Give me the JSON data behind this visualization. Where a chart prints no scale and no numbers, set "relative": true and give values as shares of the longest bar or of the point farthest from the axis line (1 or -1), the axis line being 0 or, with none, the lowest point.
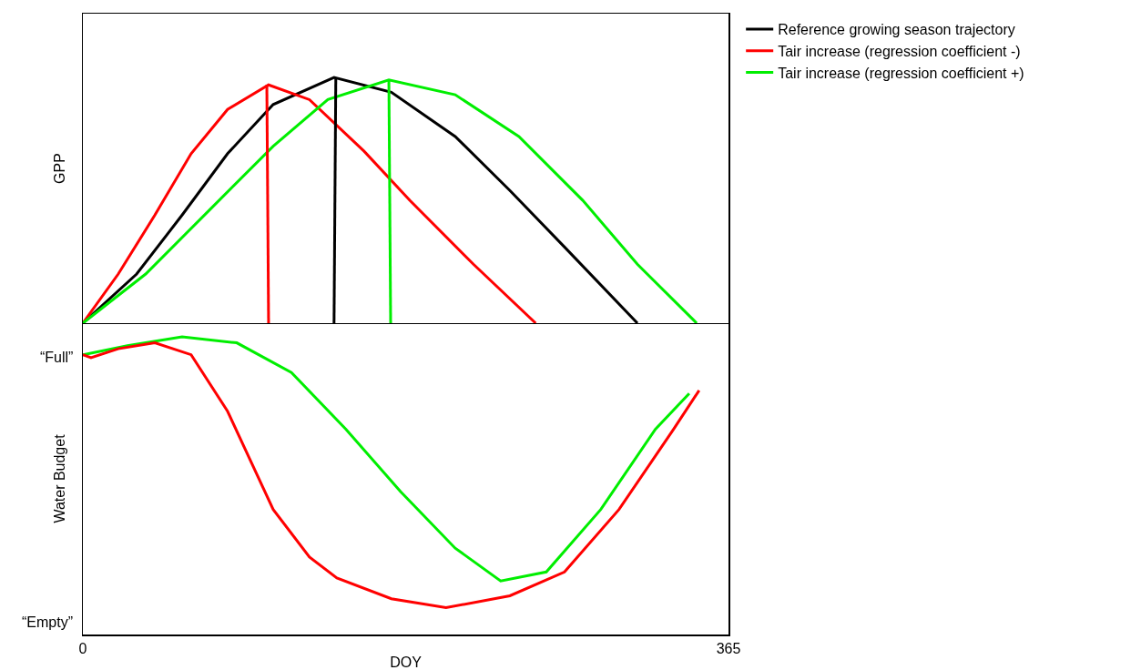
{
  "chart_data": [
    {
      "type": "line",
      "ylabel": "GPP",
      "relative": true,
      "xlim": [
        0,
        365
      ],
      "legend": "right",
      "marker": "none",
      "line_style": "solid",
      "series": [
        {
          "name": "Reference growing season trajectory",
          "color": "#000000",
          "x": [
            0,
            30.4,
            56.1,
            81.8,
            107.6,
            142,
            174.4,
            210.5,
            241.4,
            272.3,
            313.5
          ],
          "values": [
            0,
            0.2,
            0.44,
            0.69,
            0.89,
            1,
            0.94,
            0.76,
            0.54,
            0.31,
            0
          ]
        },
        {
          "name": "Tair increase (regression coefficient -)",
          "color": "#ff0000",
          "x": [
            0,
            20,
            40.7,
            61.2,
            81.8,
            105,
            128.1,
            159,
            184.8,
            220.8,
            256
          ],
          "values": [
            0,
            0.2,
            0.44,
            0.69,
            0.87,
            0.97,
            0.91,
            0.7,
            0.5,
            0.24,
            0
          ]
        },
        {
          "name": "Tair increase (regression coefficient +)",
          "color": "#00ee00",
          "x": [
            0,
            35.5,
            71.5,
            107.6,
            138.5,
            173,
            210.5,
            246.5,
            282.6,
            313.5,
            347
          ],
          "values": [
            0,
            0.2,
            0.46,
            0.72,
            0.91,
            0.99,
            0.93,
            0.76,
            0.5,
            0.24,
            0
          ]
        },
        {
          "color": "#000000",
          "x": [
            142,
            143
          ],
          "values": [
            0,
            1
          ]
        },
        {
          "color": "#ff0000",
          "x": [
            105,
            104
          ],
          "values": [
            0,
            0.97
          ]
        },
        {
          "color": "#00ee00",
          "x": [
            174,
            173
          ],
          "values": [
            0,
            0.99
          ]
        }
      ]
    },
    {
      "type": "line",
      "ylabel": "Water Budget",
      "xlabel": "DOY",
      "relative": true,
      "xlim": [
        0,
        365
      ],
      "xticks": [
        0,
        365
      ],
      "annotations": [
        "“Full”",
        "“Empty”"
      ],
      "legend": false,
      "marker": "none",
      "line_style": "solid",
      "series": [
        {
          "color": "#00ee00",
          "x": [
            0,
            25.2,
            56.1,
            87,
            117.9,
            148.7,
            179.6,
            210.5,
            236.2,
            262,
            292.8,
            323.7,
            342.8
          ],
          "values": [
            0.94,
            0.97,
            1,
            0.98,
            0.88,
            0.69,
            0.48,
            0.29,
            0.18,
            0.21,
            0.42,
            0.69,
            0.81
          ]
        },
        {
          "color": "#ff0000",
          "x": [
            0,
            4.6,
            20,
            40.7,
            61.2,
            81.8,
            107.6,
            128.1,
            143.6,
            174.4,
            205.3,
            241.4,
            272.3,
            303.1,
            334,
            348.4
          ],
          "values": [
            0.94,
            0.93,
            0.96,
            0.98,
            0.94,
            0.75,
            0.42,
            0.26,
            0.19,
            0.12,
            0.09,
            0.13,
            0.21,
            0.42,
            0.69,
            0.82
          ]
        }
      ]
    }
  ]
}
